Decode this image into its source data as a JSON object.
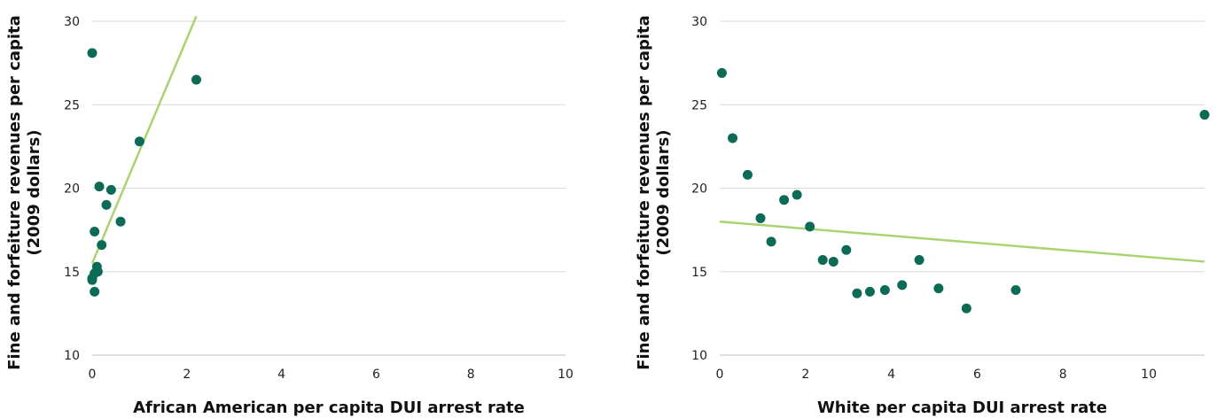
{
  "colors": {
    "point": "#0b6b57",
    "trend": "#a8d46f",
    "grid": "#d9d9d9",
    "axis": "#bfbfbf"
  },
  "chart_data": [
    {
      "type": "scatter",
      "xlabel": "African American per capita DUI arrest rate",
      "ylabel": [
        "Fine and forfeiture revenues per capita",
        "(2009 dollars)"
      ],
      "xlim": [
        0,
        10
      ],
      "ylim": [
        10,
        30
      ],
      "xticks": [
        "0",
        "2",
        "4",
        "6",
        "8",
        "10"
      ],
      "yticks": [
        "10",
        "15",
        "20",
        "25",
        "30"
      ],
      "grid": "horizontal",
      "points": [
        [
          0.0,
          28.1
        ],
        [
          2.2,
          26.5
        ],
        [
          1.0,
          22.8
        ],
        [
          0.15,
          20.1
        ],
        [
          0.4,
          19.9
        ],
        [
          0.3,
          19.0
        ],
        [
          0.6,
          18.0
        ],
        [
          0.05,
          17.4
        ],
        [
          0.2,
          16.6
        ],
        [
          0.1,
          15.3
        ],
        [
          0.12,
          15.0
        ],
        [
          0.05,
          14.9
        ],
        [
          0.0,
          14.6
        ],
        [
          0.0,
          14.5
        ],
        [
          0.05,
          13.8
        ]
      ],
      "trendline": {
        "x": [
          0.0,
          2.2
        ],
        "y": [
          15.5,
          30.3
        ]
      }
    },
    {
      "type": "scatter",
      "xlabel": "White per capita DUI arrest rate",
      "ylabel": [
        "Fine and forfeiture revenues per capita",
        "(2009 dollars)"
      ],
      "xlim": [
        0,
        11.3
      ],
      "ylim": [
        10,
        30
      ],
      "xticks": [
        "0",
        "2",
        "4",
        "6",
        "8",
        "10"
      ],
      "yticks": [
        "10",
        "15",
        "20",
        "25",
        "30"
      ],
      "grid": "horizontal",
      "points": [
        [
          0.05,
          26.9
        ],
        [
          0.3,
          23.0
        ],
        [
          0.65,
          20.8
        ],
        [
          0.95,
          18.2
        ],
        [
          1.2,
          16.8
        ],
        [
          1.5,
          19.3
        ],
        [
          1.8,
          19.6
        ],
        [
          2.1,
          17.7
        ],
        [
          2.4,
          15.7
        ],
        [
          2.65,
          15.6
        ],
        [
          2.95,
          16.3
        ],
        [
          3.2,
          13.7
        ],
        [
          3.5,
          13.8
        ],
        [
          3.85,
          13.9
        ],
        [
          4.25,
          14.2
        ],
        [
          4.65,
          15.7
        ],
        [
          5.1,
          14.0
        ],
        [
          5.75,
          12.8
        ],
        [
          6.9,
          13.9
        ],
        [
          11.3,
          24.4
        ]
      ],
      "trendline": {
        "x": [
          0.0,
          11.3
        ],
        "y": [
          18.0,
          15.6
        ]
      }
    }
  ]
}
